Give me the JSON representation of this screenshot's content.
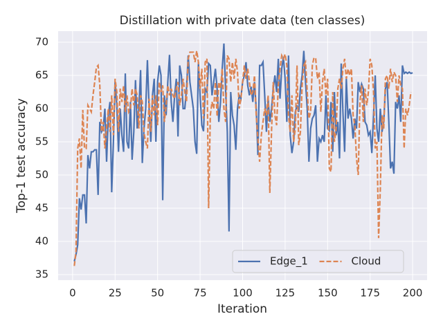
{
  "chart_data": {
    "type": "line",
    "title": "Distillation with private data (ten classes)",
    "x_label": "Iteration",
    "y_label": "Top-1 test accuracy",
    "x": [
      1,
      2,
      3,
      4,
      5,
      6,
      7,
      8,
      9,
      10,
      11,
      12,
      13,
      14,
      15,
      16,
      17,
      18,
      19,
      20,
      21,
      22,
      23,
      24,
      25,
      26,
      27,
      28,
      29,
      30,
      31,
      32,
      33,
      34,
      35,
      36,
      37,
      38,
      39,
      40,
      41,
      42,
      43,
      44,
      45,
      46,
      47,
      48,
      49,
      50,
      51,
      52,
      53,
      54,
      55,
      56,
      57,
      58,
      59,
      60,
      61,
      62,
      63,
      64,
      65,
      66,
      67,
      68,
      69,
      70,
      71,
      72,
      73,
      74,
      75,
      76,
      77,
      78,
      79,
      80,
      81,
      82,
      83,
      84,
      85,
      86,
      87,
      88,
      89,
      90,
      91,
      92,
      93,
      94,
      95,
      96,
      97,
      98,
      99,
      100,
      101,
      102,
      103,
      104,
      105,
      106,
      107,
      108,
      109,
      110,
      111,
      112,
      113,
      114,
      115,
      116,
      117,
      118,
      119,
      120,
      121,
      122,
      123,
      124,
      125,
      126,
      127,
      128,
      129,
      130,
      131,
      132,
      133,
      134,
      135,
      136,
      137,
      138,
      139,
      140,
      141,
      142,
      143,
      144,
      145,
      146,
      147,
      148,
      149,
      150,
      151,
      152,
      153,
      154,
      155,
      156,
      157,
      158,
      159,
      160,
      161,
      162,
      163,
      164,
      165,
      166,
      167,
      168,
      169,
      170,
      171,
      172,
      173,
      174,
      175,
      176,
      177,
      178,
      179,
      180,
      181,
      182,
      183,
      184,
      185,
      186,
      187,
      188,
      189,
      190,
      191,
      192,
      193,
      194,
      195,
      196,
      197,
      198,
      199,
      200
    ],
    "series": [
      {
        "name": "Edge_1",
        "color": "#4c72b0",
        "dash": false,
        "values": [
          37,
          38,
          39.5,
          46.5,
          44.8,
          47,
          47,
          42.7,
          53,
          51,
          53.5,
          53.5,
          53.8,
          53.8,
          47,
          58,
          56.5,
          57,
          60,
          52,
          59,
          61,
          47.4,
          55,
          64,
          60.5,
          53.5,
          60,
          56,
          53.5,
          65.3,
          55,
          54,
          61,
          52.3,
          56.5,
          64.3,
          57,
          60,
          65.8,
          51.8,
          57,
          60,
          67.3,
          60,
          55,
          62,
          64.5,
          55,
          64,
          66.5,
          65,
          46.2,
          62,
          59,
          64,
          68.1,
          61,
          58,
          62,
          64.5,
          55.8,
          66.5,
          65,
          60,
          60,
          63,
          68,
          64,
          62,
          60,
          55,
          53.2,
          67,
          62,
          57.5,
          56.6,
          63,
          62.5,
          66.8,
          66.5,
          62,
          64,
          66,
          63,
          58,
          61,
          66,
          69.8,
          62.8,
          56.5,
          41.5,
          62.5,
          59,
          57.5,
          53.8,
          60,
          62,
          61.5,
          64,
          65,
          67,
          63.5,
          62,
          63.3,
          61,
          64,
          60,
          53,
          66.5,
          66.5,
          67,
          62,
          56.5,
          61.5,
          58,
          60,
          63,
          65,
          62.5,
          67.5,
          61.5,
          66,
          67.8,
          64.5,
          58,
          68,
          56,
          53.3,
          55,
          59.5,
          60.5,
          59.5,
          63,
          65,
          68.7,
          64,
          60,
          52,
          57,
          58.5,
          59,
          60.5,
          52,
          55.5,
          55,
          56,
          55,
          62,
          57,
          56.7,
          61,
          53.5,
          62.5,
          56,
          58,
          52.5,
          66.8,
          59.5,
          53.5,
          64.5,
          58.5,
          60,
          58.5,
          55.5,
          58.5,
          57,
          64,
          62.5,
          63.7,
          63,
          58,
          57.5,
          56,
          56.5,
          53.3,
          59,
          65,
          57,
          55,
          60,
          56.5,
          58,
          63,
          64,
          58,
          51,
          52,
          50.2,
          61,
          60,
          62,
          58,
          66.5,
          65.3,
          65.5,
          65.3,
          65.5,
          65.3,
          65.4
        ]
      },
      {
        "name": "Cloud",
        "color": "#dd8452",
        "dash": true,
        "values": [
          36.3,
          38.5,
          54,
          55.5,
          51,
          59.8,
          54,
          54,
          60.5,
          60,
          59.5,
          62,
          64,
          66.2,
          66.5,
          63.5,
          56.5,
          58,
          54,
          57,
          60,
          56.5,
          62,
          56,
          64.5,
          62.5,
          56.5,
          63,
          61,
          63.5,
          59.5,
          62,
          59.5,
          60,
          63,
          60.5,
          63,
          62,
          57,
          62,
          61,
          56.3,
          55,
          54,
          61.5,
          56.5,
          62,
          59,
          62,
          57.5,
          64,
          62.5,
          63.5,
          58,
          60.5,
          63.5,
          62,
          63,
          62,
          61.5,
          63,
          64,
          60.5,
          62,
          64.5,
          62.5,
          61,
          67.5,
          68.5,
          68.5,
          68.5,
          67,
          68.7,
          67,
          63,
          66,
          58.5,
          67,
          67.5,
          45,
          59,
          61,
          60,
          64,
          58.8,
          64,
          63,
          66,
          60,
          58,
          68,
          67.5,
          64,
          67,
          64.5,
          67.5,
          65.5,
          60,
          61.5,
          64,
          66.5,
          64.5,
          66,
          64,
          62,
          62.5,
          65,
          59,
          55.5,
          52,
          56,
          58,
          60,
          59,
          62,
          47.3,
          56.5,
          64,
          59,
          57.5,
          63.5,
          66,
          68,
          67.5,
          68.2,
          66.5,
          59,
          56.5,
          62,
          55,
          57,
          66.5,
          54.5,
          56.5,
          63.5,
          66.5,
          67,
          62.5,
          58.5,
          59.5,
          66.5,
          67.7,
          67.5,
          64.5,
          65.5,
          59.5,
          64,
          66,
          62,
          64.5,
          51,
          50.5,
          62.5,
          55,
          57,
          63,
          64.5,
          63,
          66,
          67.5,
          64.5,
          66,
          65,
          66,
          59,
          57.5,
          52.5,
          50,
          61,
          63.5,
          58,
          63,
          60.5,
          62.5,
          67.5,
          66.5,
          62.5,
          54,
          55,
          40.5,
          48,
          59,
          57,
          64.5,
          65,
          63,
          66,
          64,
          65.5,
          65,
          61,
          65,
          63.5,
          63,
          54,
          60,
          59,
          60.5,
          62.5,
          null
        ]
      }
    ],
    "xlim": [
      -8.5,
      208.5
    ],
    "ylim": [
      34.17,
      71.67
    ],
    "xticks": [
      0,
      25,
      50,
      75,
      100,
      125,
      150,
      175,
      200
    ],
    "yticks": [
      35,
      40,
      45,
      50,
      55,
      60,
      65,
      70
    ],
    "grid": true,
    "legend": "lower right",
    "legend_columns": 2
  }
}
